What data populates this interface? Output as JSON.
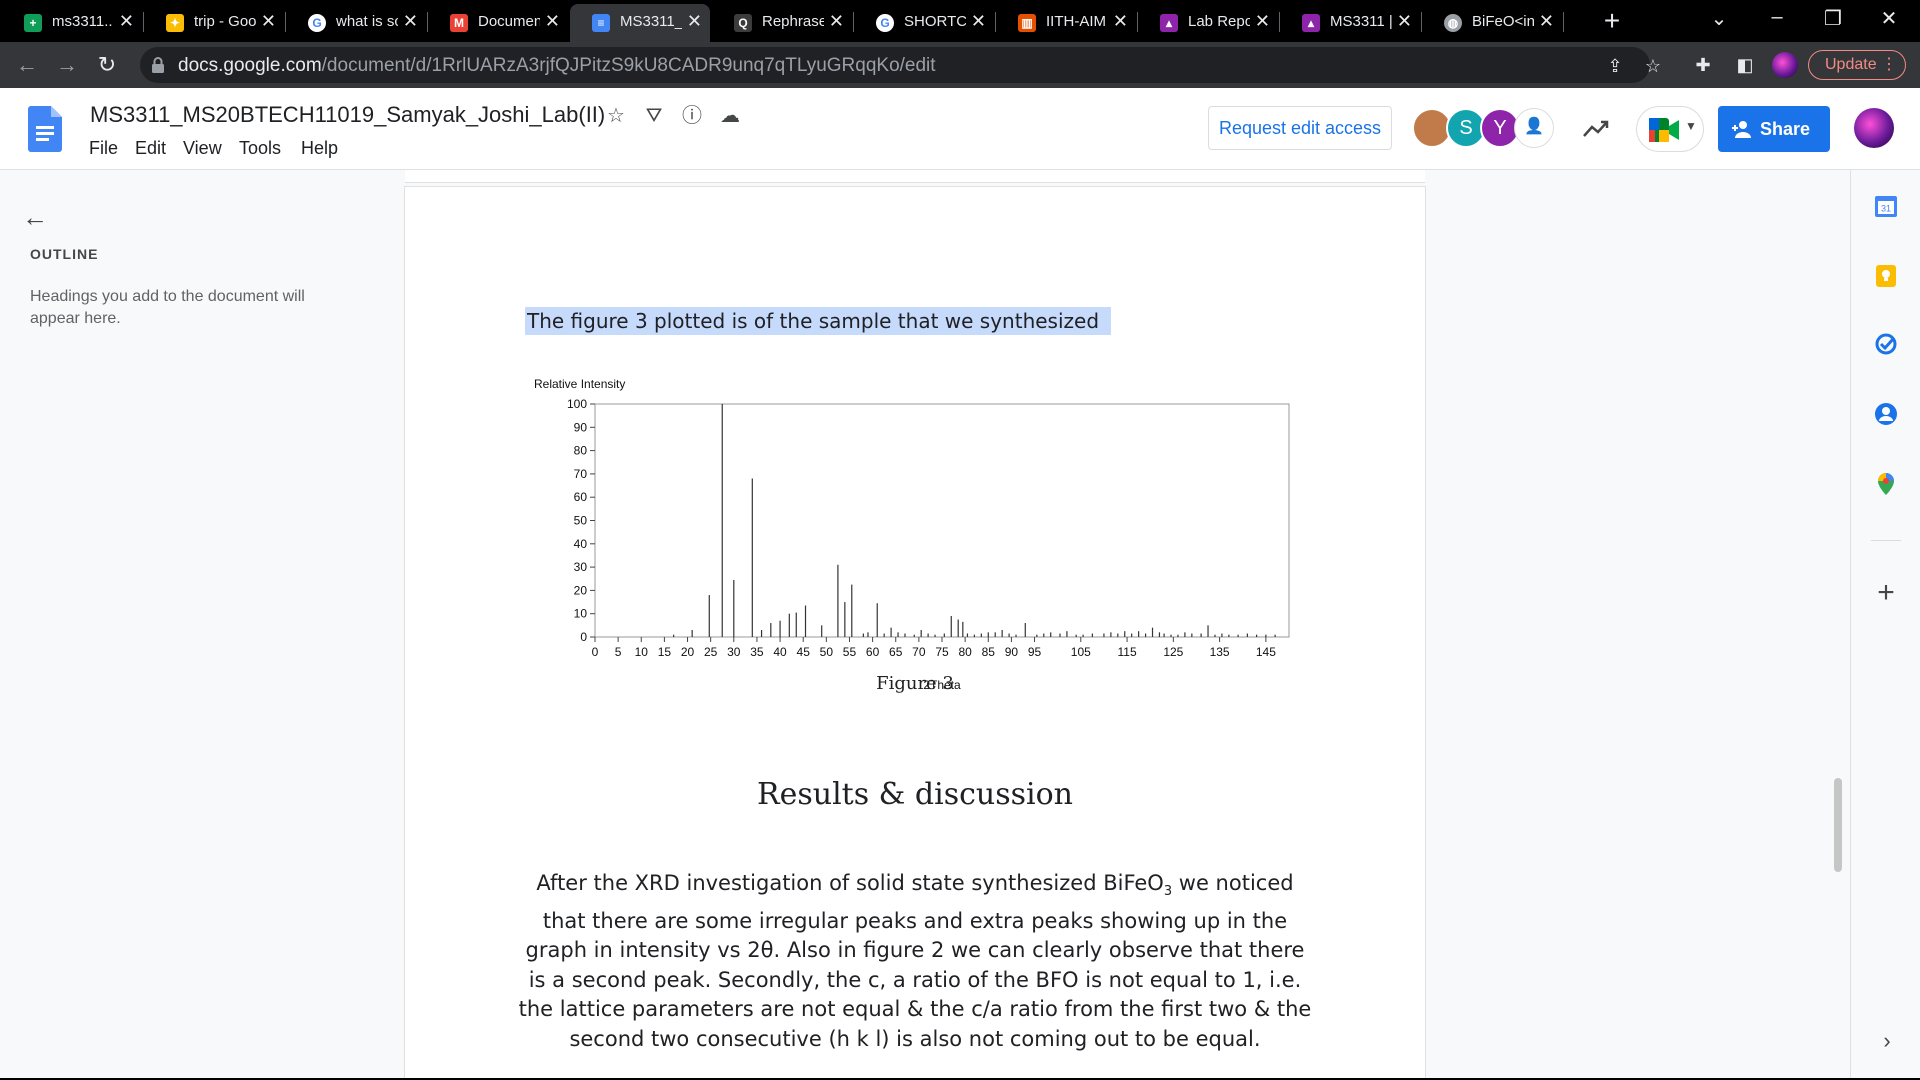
{
  "browser": {
    "tabs": [
      {
        "title": "ms3311...",
        "favicon": "sheets-icon",
        "color": "#0f9d58",
        "glyph": "+"
      },
      {
        "title": "trip - Goo",
        "favicon": "photos-icon",
        "color": "#fbbc04",
        "glyph": "✦"
      },
      {
        "title": "what is sc",
        "favicon": "google-icon",
        "color": "#ffffff",
        "glyph": "G"
      },
      {
        "title": "Documen",
        "favicon": "gmail-icon",
        "color": "#ea4335",
        "glyph": "M"
      },
      {
        "title": "MS3311_",
        "favicon": "docs-icon",
        "color": "#4285f4",
        "glyph": "≡"
      },
      {
        "title": "Rephrase",
        "favicon": "quillbot-icon",
        "color": "#3c3c3c",
        "glyph": "Q"
      },
      {
        "title": "SHORTCU",
        "favicon": "google-icon",
        "color": "#ffffff",
        "glyph": "G"
      },
      {
        "title": "IITH-AIM",
        "favicon": "iith-icon",
        "color": "#e65100",
        "glyph": "▥"
      },
      {
        "title": "Lab Repo",
        "favicon": "classroom-icon",
        "color": "#8e24aa",
        "glyph": "▴"
      },
      {
        "title": "MS3311 |",
        "favicon": "classroom-icon",
        "color": "#8e24aa",
        "glyph": "▴"
      },
      {
        "title": "BiFeO<in",
        "favicon": "globe-icon",
        "color": "#9aa0a6",
        "glyph": "◍"
      }
    ],
    "new_tab_label": "+",
    "url_host": "docs.google.com",
    "url_path": "/document/d/1RrlUARzA3rjfQJPitzS9kU8CADR9unq7qTLyuGRqqKo/edit",
    "update_label": "Update"
  },
  "docs": {
    "title": "MS3311_MS20BTECH11019_Samyak_Joshi_Lab(II)",
    "menu": [
      "File",
      "Edit",
      "View",
      "Tools",
      "Help"
    ],
    "request_edit_label": "Request edit access",
    "share_label": "Share",
    "avatars": [
      {
        "letter": "",
        "color": "#c17a4a"
      },
      {
        "letter": "S",
        "color": "#12a4af"
      },
      {
        "letter": "Y",
        "color": "#8e24aa"
      }
    ],
    "accent": "#1a73e8"
  },
  "outline": {
    "header": "OUTLINE",
    "hint": "Headings you add to the document will appear here."
  },
  "document": {
    "highlighted_line": "The figure 3 plotted is of the sample that we synthesized",
    "figure_label": "Figure 3",
    "heading": "Results & discussion",
    "para_before_sub": "After the XRD investigation of solid state synthesized BiFeO",
    "para_sub": "3",
    "para_after_sub": " we noticed that there are some irregular peaks and extra peaks showing up in the graph in intensity vs 2θ. Also in figure 2 we can clearly observe that there is a second peak. Secondly, the c, a ratio of the BFO is not equal to 1, i.e. the lattice parameters are not equal & the c/a ratio from the first two & the second two consecutive (h k l) is also not coming out to be equal."
  },
  "chart_data": {
    "type": "bar",
    "ylabel": "Relative Intensity",
    "xlabel": "2Theta",
    "xlim": [
      0,
      150
    ],
    "ylim": [
      0,
      100
    ],
    "xticks": [
      0,
      5,
      10,
      15,
      20,
      25,
      30,
      35,
      40,
      45,
      50,
      55,
      60,
      65,
      70,
      75,
      80,
      85,
      90,
      95,
      105,
      115,
      125,
      135,
      145
    ],
    "yticks": [
      0,
      10,
      20,
      30,
      40,
      50,
      60,
      70,
      80,
      90,
      100
    ],
    "grid": false,
    "x": [
      17,
      21,
      24.7,
      27.5,
      30,
      34,
      36,
      38,
      40,
      42,
      43.5,
      45.5,
      49,
      52.5,
      54,
      55.5,
      58,
      59,
      61,
      62.5,
      64,
      65.5,
      67,
      69,
      70.5,
      72,
      73.5,
      75.5,
      77,
      78.5,
      79.5,
      80.5,
      82,
      83.5,
      85,
      86.5,
      88,
      89.5,
      91,
      93,
      95.5,
      97,
      98.5,
      100.5,
      102,
      104,
      105.5,
      107.5,
      110,
      111.5,
      113,
      114.5,
      116,
      117.5,
      119,
      120.5,
      122,
      123,
      124.5,
      126,
      127.5,
      129,
      131,
      132.5,
      134,
      135.5,
      137,
      139,
      141,
      143,
      145,
      147
    ],
    "y": [
      1,
      3,
      18,
      100,
      24.5,
      68,
      3,
      6,
      7,
      10,
      10.5,
      13.5,
      5,
      31,
      15,
      22.5,
      1.5,
      2,
      14.5,
      1.5,
      4,
      2,
      1.5,
      1,
      3,
      1.5,
      1,
      1.5,
      9,
      7.5,
      6.5,
      1.5,
      1,
      1.5,
      2,
      2,
      3,
      1.5,
      1,
      6,
      1,
      1.5,
      2,
      1.5,
      2.5,
      1,
      1,
      1.5,
      1.5,
      2,
      1.5,
      2.5,
      1.5,
      2.5,
      1.5,
      4,
      2,
      1.5,
      1,
      1,
      2,
      1.5,
      1.5,
      5,
      1,
      1.5,
      1,
      1,
      1.5,
      1,
      1,
      1
    ]
  },
  "colors": {
    "tabstrip": "#000000",
    "toolbar": "#35363a",
    "selection": "#c6dafc",
    "share_button": "#1a73e8"
  }
}
